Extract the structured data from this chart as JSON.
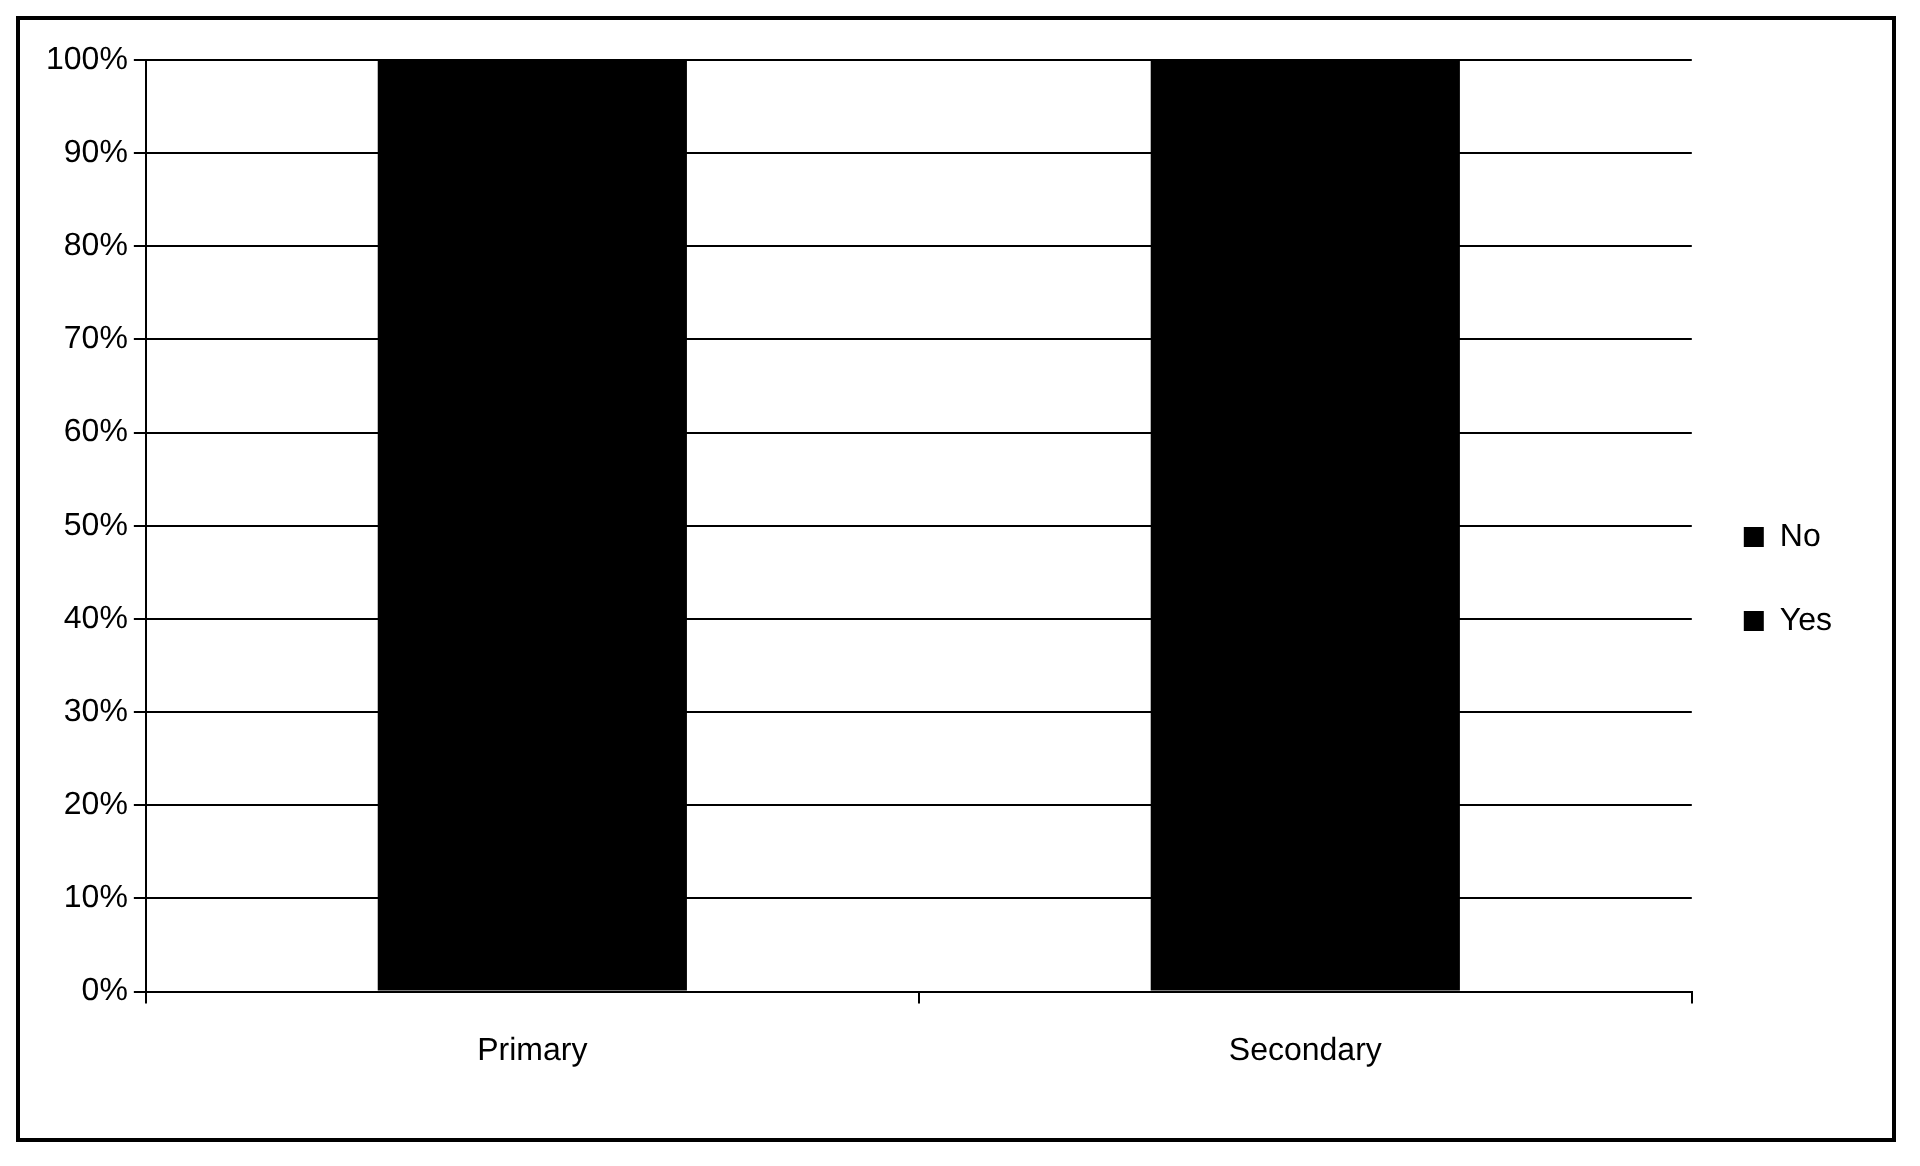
{
  "chart_data": {
    "type": "bar",
    "stacked": true,
    "categories": [
      "Primary",
      "Secondary"
    ],
    "series": [
      {
        "name": "Yes",
        "color": "#000000",
        "values": [
          100,
          100
        ]
      },
      {
        "name": "No",
        "color": "#000000",
        "values": [
          0,
          0
        ]
      }
    ],
    "ylim": [
      0,
      100
    ],
    "yticks": [
      {
        "value": 0,
        "label": "0%"
      },
      {
        "value": 10,
        "label": "10%"
      },
      {
        "value": 20,
        "label": "20%"
      },
      {
        "value": 30,
        "label": "30%"
      },
      {
        "value": 40,
        "label": "40%"
      },
      {
        "value": 50,
        "label": "50%"
      },
      {
        "value": 60,
        "label": "60%"
      },
      {
        "value": 70,
        "label": "70%"
      },
      {
        "value": 80,
        "label": "80%"
      },
      {
        "value": 90,
        "label": "90%"
      },
      {
        "value": 100,
        "label": "100%"
      }
    ],
    "grid": "y",
    "legend": "right"
  }
}
